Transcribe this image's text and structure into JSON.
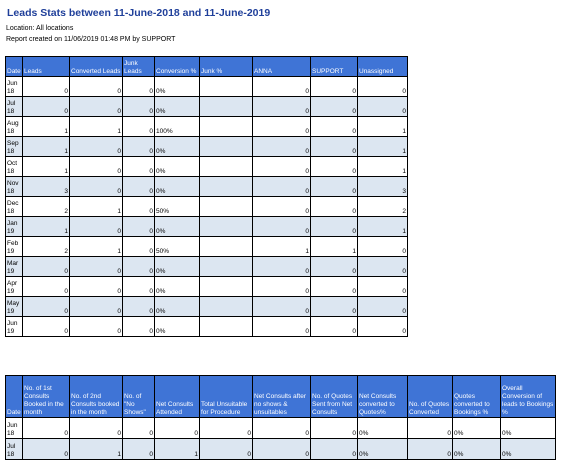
{
  "title": "Leads Stats between 11-June-2018 and 11-June-2019",
  "location": "Location: All locations",
  "created": "Report created on 11/06/2019 01:48 PM by SUPPORT",
  "table1": {
    "headers": [
      "Date",
      "Leads",
      "Converted Leads",
      "Junk Leads",
      "Conversion %",
      "Junk %",
      "ANNA",
      "SUPPORT",
      "Unassigned"
    ],
    "rows": [
      [
        "Jun 18",
        "0",
        "0",
        "0",
        "0%",
        "",
        "0",
        "0",
        "0"
      ],
      [
        "Jul 18",
        "0",
        "0",
        "0",
        "0%",
        "",
        "0",
        "0",
        "0"
      ],
      [
        "Aug 18",
        "1",
        "1",
        "0",
        "100%",
        "",
        "0",
        "0",
        "1"
      ],
      [
        "Sep 18",
        "1",
        "0",
        "0",
        "0%",
        "",
        "0",
        "0",
        "1"
      ],
      [
        "Oct 18",
        "1",
        "0",
        "0",
        "0%",
        "",
        "0",
        "0",
        "1"
      ],
      [
        "Nov 18",
        "3",
        "0",
        "0",
        "0%",
        "",
        "0",
        "0",
        "3"
      ],
      [
        "Dec 18",
        "2",
        "1",
        "0",
        "50%",
        "",
        "0",
        "0",
        "2"
      ],
      [
        "Jan 19",
        "1",
        "0",
        "0",
        "0%",
        "",
        "0",
        "0",
        "1"
      ],
      [
        "Feb 19",
        "2",
        "1",
        "0",
        "50%",
        "",
        "1",
        "1",
        "0"
      ],
      [
        "Mar 19",
        "0",
        "0",
        "0",
        "0%",
        "",
        "0",
        "0",
        "0"
      ],
      [
        "Apr 19",
        "0",
        "0",
        "0",
        "0%",
        "",
        "0",
        "0",
        "0"
      ],
      [
        "May 19",
        "0",
        "0",
        "0",
        "0%",
        "",
        "0",
        "0",
        "0"
      ],
      [
        "Jun 19",
        "0",
        "0",
        "0",
        "0%",
        "",
        "0",
        "0",
        "0"
      ]
    ]
  },
  "table2": {
    "headers": [
      "Date",
      "No. of 1st Consults Booked in the month",
      "No. of 2nd Consults booked in the month",
      "No. of \"No Shows\"",
      "Net Consults Attended",
      "Total Unsuitable for Procedure",
      "Net Consults after no shows & unsuitables",
      "No. of Quotes Sent from Net Consults",
      "Net Consults converted to Quotes%",
      "No. of Quotes Converted",
      "Quotes converted to Bookings %",
      "Overall Conversion of leads to Bookings %"
    ],
    "rows": [
      [
        "Jun 18",
        "0",
        "0",
        "0",
        "0",
        "0",
        "0",
        "0",
        "0%",
        "0",
        "0%",
        "0%"
      ],
      [
        "Jul 18",
        "0",
        "1",
        "0",
        "1",
        "0",
        "0",
        "0",
        "0%",
        "0",
        "0%",
        "0%"
      ]
    ]
  }
}
